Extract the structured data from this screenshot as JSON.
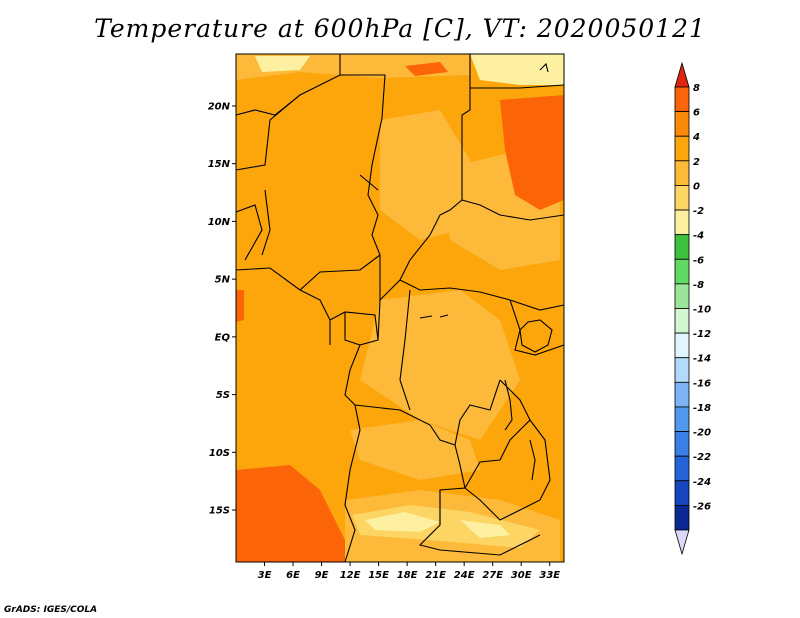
{
  "title": "Temperature at 600hPa [C], VT: 2020050121",
  "credit": "GrADS: IGES/COLA",
  "map": {
    "lon_range": [
      0,
      34.5
    ],
    "lat_range": [
      -19.5,
      24.5
    ],
    "lon_ticks": [
      "3E",
      "6E",
      "9E",
      "12E",
      "15E",
      "18E",
      "21E",
      "24E",
      "27E",
      "30E",
      "33E"
    ],
    "lon_tick_values": [
      3,
      6,
      9,
      12,
      15,
      18,
      21,
      24,
      27,
      30,
      33
    ],
    "lat_ticks": [
      "20N",
      "15N",
      "10N",
      "5N",
      "EQ",
      "5S",
      "10S",
      "15S"
    ],
    "lat_tick_values": [
      20,
      15,
      10,
      5,
      0,
      -5,
      -10,
      -15
    ],
    "background_color": "#fca60c"
  },
  "colorbar": {
    "labels": [
      "8",
      "6",
      "4",
      "2",
      "0",
      "-2",
      "-4",
      "-6",
      "-8",
      "-10",
      "-12",
      "-14",
      "-16",
      "-18",
      "-20",
      "-22",
      "-24",
      "-26"
    ],
    "colors": [
      "#fb6508",
      "#fc8a0a",
      "#fca60c",
      "#fcb93a",
      "#fcd565",
      "#fdf0a0",
      "#3cc23c",
      "#62d962",
      "#9be59b",
      "#d2f5d2",
      "#e1f5ff",
      "#b3d9fb",
      "#7eb4f6",
      "#5298ef",
      "#3a7ee8",
      "#2563d9",
      "#1646bd",
      "#0a2891"
    ],
    "top_arrow_color": "#e02410",
    "bottom_arrow_color": "#dcd8f8"
  }
}
